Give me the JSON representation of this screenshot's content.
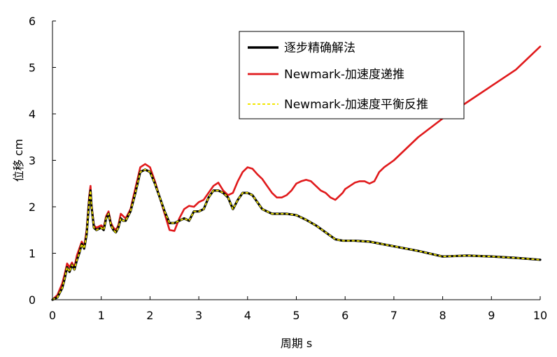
{
  "chart_data": {
    "type": "line",
    "xlabel": "周期 s",
    "ylabel": "位移 cm",
    "xlim": [
      0,
      10
    ],
    "ylim": [
      0,
      6
    ],
    "xticks": [
      "0",
      "1",
      "2",
      "3",
      "4",
      "5",
      "6",
      "7",
      "8",
      "9",
      "10"
    ],
    "yticks": [
      "0",
      "1",
      "2",
      "3",
      "4",
      "5",
      "6"
    ],
    "grid": false,
    "legend": "top-right",
    "series": [
      {
        "name": "逐步精确解法",
        "color": "#000000",
        "style": "solid",
        "x": [
          0,
          0.1,
          0.2,
          0.25,
          0.3,
          0.35,
          0.4,
          0.45,
          0.5,
          0.55,
          0.6,
          0.65,
          0.7,
          0.75,
          0.78,
          0.8,
          0.85,
          0.9,
          1.0,
          1.05,
          1.1,
          1.15,
          1.2,
          1.25,
          1.3,
          1.35,
          1.4,
          1.45,
          1.5,
          1.6,
          1.7,
          1.8,
          1.9,
          2.0,
          2.1,
          2.2,
          2.3,
          2.4,
          2.5,
          2.6,
          2.7,
          2.8,
          2.9,
          3.0,
          3.1,
          3.2,
          3.3,
          3.4,
          3.5,
          3.6,
          3.7,
          3.8,
          3.9,
          4.0,
          4.1,
          4.2,
          4.3,
          4.4,
          4.5,
          4.6,
          4.7,
          4.8,
          5.0,
          5.2,
          5.4,
          5.6,
          5.8,
          5.95,
          6.0,
          6.2,
          6.5,
          7.0,
          7.5,
          8.0,
          8.5,
          9.0,
          9.5,
          10.0
        ],
        "y": [
          0,
          0.05,
          0.25,
          0.45,
          0.7,
          0.6,
          0.75,
          0.65,
          0.85,
          1.0,
          1.2,
          1.1,
          1.4,
          2.1,
          2.35,
          2.0,
          1.55,
          1.5,
          1.55,
          1.5,
          1.75,
          1.85,
          1.6,
          1.5,
          1.45,
          1.55,
          1.75,
          1.7,
          1.7,
          1.9,
          2.3,
          2.75,
          2.8,
          2.75,
          2.5,
          2.2,
          1.9,
          1.65,
          1.65,
          1.7,
          1.75,
          1.7,
          1.9,
          1.9,
          1.95,
          2.2,
          2.35,
          2.35,
          2.3,
          2.2,
          1.95,
          2.15,
          2.3,
          2.3,
          2.25,
          2.1,
          1.95,
          1.9,
          1.85,
          1.85,
          1.85,
          1.85,
          1.82,
          1.72,
          1.6,
          1.45,
          1.3,
          1.27,
          1.27,
          1.27,
          1.25,
          1.15,
          1.05,
          0.93,
          0.95,
          0.93,
          0.9,
          0.86
        ]
      },
      {
        "name": "Newmark-加速度递推",
        "color": "#e0191b",
        "style": "solid",
        "x": [
          0,
          0.1,
          0.2,
          0.25,
          0.3,
          0.35,
          0.4,
          0.45,
          0.5,
          0.55,
          0.6,
          0.65,
          0.7,
          0.75,
          0.78,
          0.8,
          0.85,
          0.9,
          1.0,
          1.05,
          1.1,
          1.15,
          1.2,
          1.25,
          1.3,
          1.35,
          1.4,
          1.45,
          1.5,
          1.6,
          1.7,
          1.8,
          1.9,
          2.0,
          2.1,
          2.2,
          2.3,
          2.4,
          2.5,
          2.6,
          2.7,
          2.8,
          2.9,
          3.0,
          3.1,
          3.2,
          3.3,
          3.4,
          3.5,
          3.6,
          3.7,
          3.8,
          3.9,
          4.0,
          4.1,
          4.2,
          4.3,
          4.4,
          4.5,
          4.6,
          4.7,
          4.8,
          4.9,
          5.0,
          5.1,
          5.2,
          5.3,
          5.4,
          5.5,
          5.6,
          5.7,
          5.8,
          5.9,
          5.95,
          6.0,
          6.1,
          6.2,
          6.3,
          6.4,
          6.5,
          6.6,
          6.7,
          6.8,
          7.0,
          7.5,
          8.0,
          8.5,
          9.0,
          9.5,
          10.0
        ],
        "y": [
          0,
          0.1,
          0.35,
          0.55,
          0.78,
          0.7,
          0.8,
          0.7,
          0.95,
          1.1,
          1.25,
          1.15,
          1.5,
          2.2,
          2.45,
          2.05,
          1.6,
          1.55,
          1.6,
          1.55,
          1.8,
          1.9,
          1.65,
          1.55,
          1.5,
          1.6,
          1.85,
          1.8,
          1.75,
          1.95,
          2.4,
          2.85,
          2.92,
          2.85,
          2.55,
          2.2,
          1.85,
          1.5,
          1.48,
          1.75,
          1.95,
          2.02,
          2.0,
          2.1,
          2.15,
          2.3,
          2.45,
          2.52,
          2.35,
          2.25,
          2.3,
          2.55,
          2.75,
          2.85,
          2.82,
          2.7,
          2.6,
          2.45,
          2.3,
          2.2,
          2.2,
          2.25,
          2.35,
          2.5,
          2.55,
          2.58,
          2.55,
          2.45,
          2.35,
          2.3,
          2.2,
          2.15,
          2.25,
          2.3,
          2.38,
          2.45,
          2.52,
          2.55,
          2.55,
          2.5,
          2.55,
          2.75,
          2.85,
          3.0,
          3.5,
          3.9,
          4.25,
          4.6,
          4.95,
          5.45
        ]
      },
      {
        "name": "Newmark-加速度平衡反推",
        "color": "#f2e600",
        "style": "dashed",
        "x": [
          0,
          0.1,
          0.2,
          0.25,
          0.3,
          0.35,
          0.4,
          0.45,
          0.5,
          0.55,
          0.6,
          0.65,
          0.7,
          0.75,
          0.78,
          0.8,
          0.85,
          0.9,
          1.0,
          1.05,
          1.1,
          1.15,
          1.2,
          1.25,
          1.3,
          1.35,
          1.4,
          1.45,
          1.5,
          1.6,
          1.7,
          1.8,
          1.9,
          2.0,
          2.1,
          2.2,
          2.3,
          2.4,
          2.5,
          2.6,
          2.7,
          2.8,
          2.9,
          3.0,
          3.1,
          3.2,
          3.3,
          3.4,
          3.5,
          3.6,
          3.7,
          3.8,
          3.9,
          4.0,
          4.1,
          4.2,
          4.3,
          4.4,
          4.5,
          4.6,
          4.7,
          4.8,
          5.0,
          5.2,
          5.4,
          5.6,
          5.8,
          5.95,
          6.0,
          6.2,
          6.5,
          7.0,
          7.5,
          8.0,
          8.5,
          9.0,
          9.5,
          10.0
        ],
        "y": [
          0,
          0.05,
          0.25,
          0.45,
          0.7,
          0.6,
          0.75,
          0.65,
          0.85,
          1.0,
          1.2,
          1.1,
          1.4,
          2.1,
          2.35,
          2.0,
          1.55,
          1.5,
          1.55,
          1.5,
          1.75,
          1.85,
          1.6,
          1.5,
          1.45,
          1.55,
          1.75,
          1.7,
          1.7,
          1.9,
          2.3,
          2.75,
          2.8,
          2.75,
          2.5,
          2.2,
          1.9,
          1.65,
          1.65,
          1.7,
          1.75,
          1.7,
          1.9,
          1.9,
          1.95,
          2.2,
          2.35,
          2.35,
          2.3,
          2.2,
          1.95,
          2.15,
          2.3,
          2.3,
          2.25,
          2.1,
          1.95,
          1.9,
          1.85,
          1.85,
          1.85,
          1.85,
          1.82,
          1.72,
          1.6,
          1.45,
          1.3,
          1.27,
          1.27,
          1.27,
          1.25,
          1.15,
          1.05,
          0.93,
          0.95,
          0.93,
          0.9,
          0.86
        ]
      }
    ]
  }
}
